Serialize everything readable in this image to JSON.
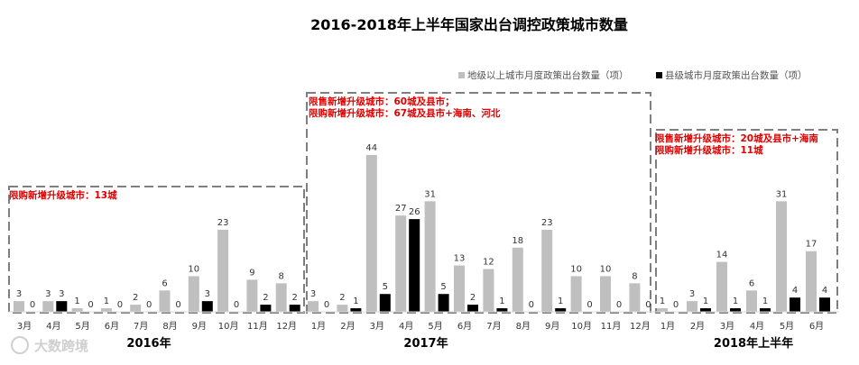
{
  "chart_data": {
    "type": "bar",
    "title": "2016-2018年上半年国家出台调控政策城市数量",
    "legend_position": "top-right",
    "series": [
      {
        "name": "地级以上城市月度政策出台数量（项）",
        "color": "#bfbfbf"
      },
      {
        "name": "县级城市月度政策出台数量（项）",
        "color": "#000000"
      }
    ],
    "groups": [
      {
        "year_label": "2016年",
        "notes": [
          "限购新增升级城市：13城"
        ],
        "categories": [
          "3月",
          "4月",
          "5月",
          "6月",
          "7月",
          "8月",
          "9月",
          "10月",
          "11月",
          "12月"
        ],
        "prefecture": [
          3,
          3,
          1,
          1,
          2,
          6,
          10,
          23,
          9,
          8
        ],
        "county": [
          0,
          3,
          0,
          0,
          0,
          0,
          3,
          0,
          2,
          2
        ]
      },
      {
        "year_label": "2017年",
        "notes": [
          "限售新增升级城市：60城及县市；",
          "限购新增升级城市：67城及县市+海南、河北"
        ],
        "categories": [
          "1月",
          "2月",
          "3月",
          "4月",
          "5月",
          "6月",
          "7月",
          "8月",
          "9月",
          "10月",
          "11月",
          "12月"
        ],
        "prefecture": [
          3,
          2,
          44,
          27,
          31,
          13,
          12,
          18,
          23,
          10,
          10,
          8
        ],
        "county": [
          0,
          1,
          5,
          26,
          5,
          2,
          1,
          0,
          1,
          0,
          0,
          0
        ]
      },
      {
        "year_label": "2018年上半年",
        "notes": [
          "限售新增升级城市：20城及县市+海南",
          "限购新增升级城市：11城"
        ],
        "categories": [
          "1月",
          "2月",
          "3月",
          "4月",
          "5月",
          "6月"
        ],
        "prefecture": [
          1,
          3,
          14,
          6,
          31,
          17
        ],
        "county": [
          0,
          1,
          1,
          1,
          4,
          4
        ]
      }
    ],
    "y_max": 46,
    "grid": false
  },
  "watermark": "大数跨境"
}
